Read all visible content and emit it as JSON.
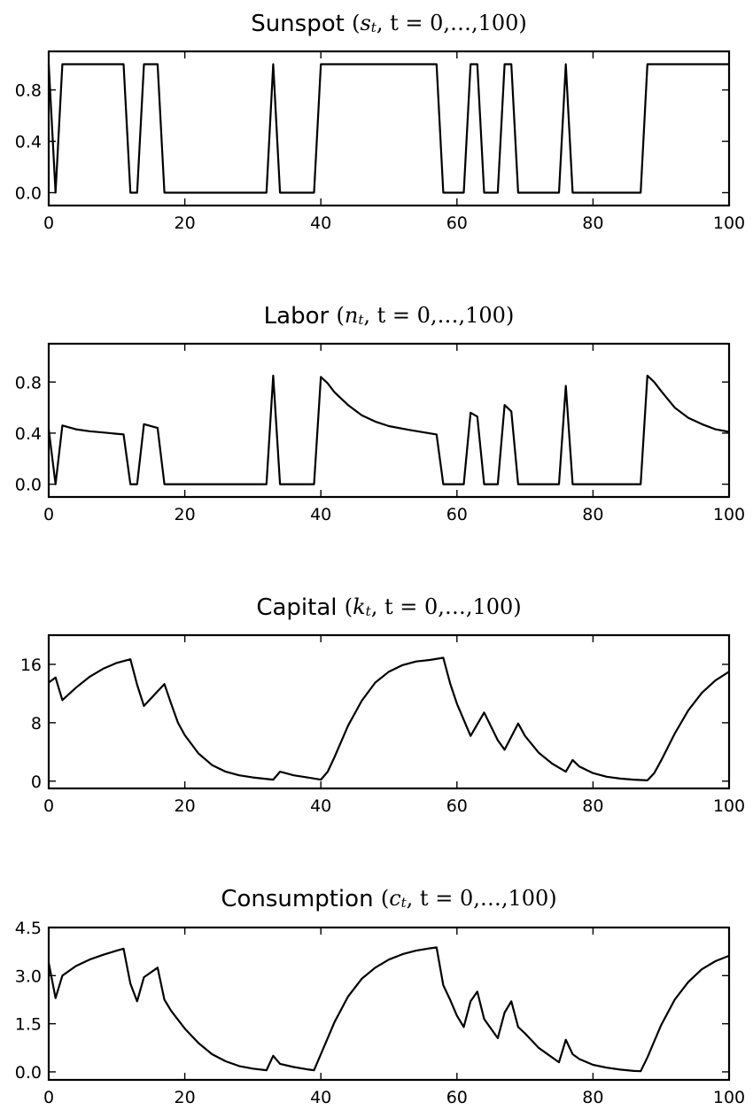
{
  "chart_data": [
    {
      "type": "line",
      "title": {
        "prefix": "Sunspot ",
        "var": "s",
        "sub": "t",
        "suffix": ", t = 0,…,100)"
      },
      "xlim": [
        0,
        100
      ],
      "ylim": [
        -0.1,
        1.1
      ],
      "xticks": [
        0,
        20,
        40,
        60,
        80,
        100
      ],
      "yticks": [
        0.0,
        0.4,
        0.8
      ],
      "ytick_labels": [
        "0.0",
        "0.4",
        "0.8"
      ],
      "grid": false,
      "x": [
        0,
        1,
        2,
        11,
        12,
        13,
        14,
        16,
        17,
        32,
        33,
        34,
        39,
        40,
        57,
        58,
        61,
        62,
        63,
        64,
        66,
        67,
        68,
        69,
        75,
        76,
        77,
        87,
        88,
        100
      ],
      "y": [
        1,
        0,
        1,
        1,
        0,
        0,
        1,
        1,
        0,
        0,
        1,
        0,
        0,
        1,
        1,
        0,
        0,
        1,
        1,
        0,
        0,
        1,
        1,
        0,
        0,
        1,
        0,
        0,
        1,
        1
      ]
    },
    {
      "type": "line",
      "title": {
        "prefix": "Labor ",
        "var": "n",
        "sub": "t",
        "suffix": ", t = 0,…,100)"
      },
      "xlim": [
        0,
        100
      ],
      "ylim": [
        -0.1,
        1.1
      ],
      "xticks": [
        0,
        20,
        40,
        60,
        80,
        100
      ],
      "yticks": [
        0.0,
        0.4,
        0.8
      ],
      "ytick_labels": [
        "0.0",
        "0.4",
        "0.8"
      ],
      "grid": false,
      "x": [
        0,
        1,
        2,
        4,
        6,
        8,
        11,
        12,
        13,
        14,
        16,
        17,
        32,
        33,
        34,
        39,
        40,
        41,
        42,
        44,
        46,
        48,
        50,
        53,
        57,
        58,
        61,
        62,
        63,
        64,
        66,
        67,
        68,
        69,
        75,
        76,
        77,
        87,
        88,
        89,
        90,
        92,
        94,
        96,
        98,
        100
      ],
      "y": [
        0.43,
        0.0,
        0.46,
        0.43,
        0.415,
        0.405,
        0.39,
        0.0,
        0.0,
        0.47,
        0.44,
        0.0,
        0.0,
        0.85,
        0.0,
        0.0,
        0.84,
        0.79,
        0.72,
        0.62,
        0.54,
        0.49,
        0.455,
        0.425,
        0.39,
        0.0,
        0.0,
        0.56,
        0.53,
        0.0,
        0.0,
        0.62,
        0.57,
        0.0,
        0.0,
        0.77,
        0.0,
        0.0,
        0.85,
        0.8,
        0.73,
        0.6,
        0.52,
        0.47,
        0.43,
        0.41
      ]
    },
    {
      "type": "line",
      "title": {
        "prefix": "Capital ",
        "var": "k",
        "sub": "t",
        "suffix": ", t = 0,…,100)"
      },
      "xlim": [
        0,
        100
      ],
      "ylim": [
        -1,
        20
      ],
      "xticks": [
        0,
        20,
        40,
        60,
        80,
        100
      ],
      "yticks": [
        0,
        8,
        16
      ],
      "ytick_labels": [
        "0",
        "8",
        "16"
      ],
      "grid": false,
      "x": [
        0,
        1,
        2,
        4,
        6,
        8,
        10,
        12,
        13,
        14,
        16,
        17,
        18,
        19,
        20,
        22,
        24,
        26,
        28,
        30,
        33,
        34,
        36,
        38,
        40,
        41,
        42,
        44,
        46,
        48,
        50,
        52,
        54,
        56,
        58,
        59,
        60,
        62,
        64,
        66,
        67,
        69,
        70,
        72,
        74,
        76,
        77,
        78,
        80,
        82,
        84,
        86,
        88,
        89,
        90,
        92,
        94,
        96,
        98,
        100
      ],
      "y": [
        13.5,
        14.2,
        11.1,
        12.8,
        14.3,
        15.4,
        16.2,
        16.7,
        13.2,
        10.3,
        12.3,
        13.3,
        10.6,
        8.0,
        6.3,
        3.8,
        2.2,
        1.3,
        0.8,
        0.5,
        0.2,
        1.3,
        0.8,
        0.5,
        0.2,
        1.3,
        3.3,
        7.6,
        11.0,
        13.5,
        15.0,
        15.9,
        16.4,
        16.6,
        16.9,
        13.4,
        10.6,
        6.2,
        9.4,
        5.6,
        4.3,
        7.9,
        6.2,
        3.9,
        2.4,
        1.3,
        2.9,
        2.0,
        1.1,
        0.6,
        0.35,
        0.2,
        0.1,
        1.1,
        2.8,
        6.5,
        9.7,
        12.1,
        13.8,
        15.0
      ]
    },
    {
      "type": "line",
      "title": {
        "prefix": "Consumption ",
        "var": "c",
        "sub": "t",
        "suffix": ", t = 0,…,100)"
      },
      "xlim": [
        0,
        100
      ],
      "ylim": [
        -0.25,
        4.5
      ],
      "xticks": [
        0,
        20,
        40,
        60,
        80,
        100
      ],
      "yticks": [
        0.0,
        1.5,
        3.0,
        4.5
      ],
      "ytick_labels": [
        "0.0",
        "1.5",
        "3.0",
        "4.5"
      ],
      "grid": false,
      "x": [
        0,
        1,
        2,
        4,
        6,
        8,
        10,
        11,
        12,
        13,
        14,
        16,
        17,
        18,
        20,
        22,
        24,
        26,
        28,
        30,
        32,
        33,
        34,
        36,
        38,
        39,
        40,
        41,
        42,
        44,
        46,
        48,
        50,
        52,
        54,
        56,
        57,
        58,
        59,
        60,
        61,
        62,
        63,
        64,
        65,
        66,
        67,
        68,
        69,
        70,
        72,
        74,
        75,
        76,
        77,
        78,
        80,
        82,
        84,
        86,
        87,
        88,
        89,
        90,
        92,
        94,
        96,
        98,
        100
      ],
      "y": [
        3.4,
        2.3,
        3.0,
        3.3,
        3.5,
        3.65,
        3.78,
        3.84,
        2.75,
        2.2,
        2.95,
        3.25,
        2.25,
        1.9,
        1.35,
        0.9,
        0.55,
        0.33,
        0.18,
        0.1,
        0.05,
        0.5,
        0.25,
        0.15,
        0.08,
        0.05,
        0.55,
        1.05,
        1.55,
        2.35,
        2.9,
        3.25,
        3.5,
        3.67,
        3.78,
        3.85,
        3.88,
        2.7,
        2.25,
        1.75,
        1.4,
        2.2,
        2.5,
        1.65,
        1.35,
        1.05,
        1.85,
        2.2,
        1.4,
        1.2,
        0.75,
        0.45,
        0.3,
        1.0,
        0.55,
        0.4,
        0.22,
        0.13,
        0.07,
        0.03,
        0.02,
        0.45,
        0.95,
        1.45,
        2.25,
        2.8,
        3.2,
        3.45,
        3.62
      ]
    }
  ]
}
